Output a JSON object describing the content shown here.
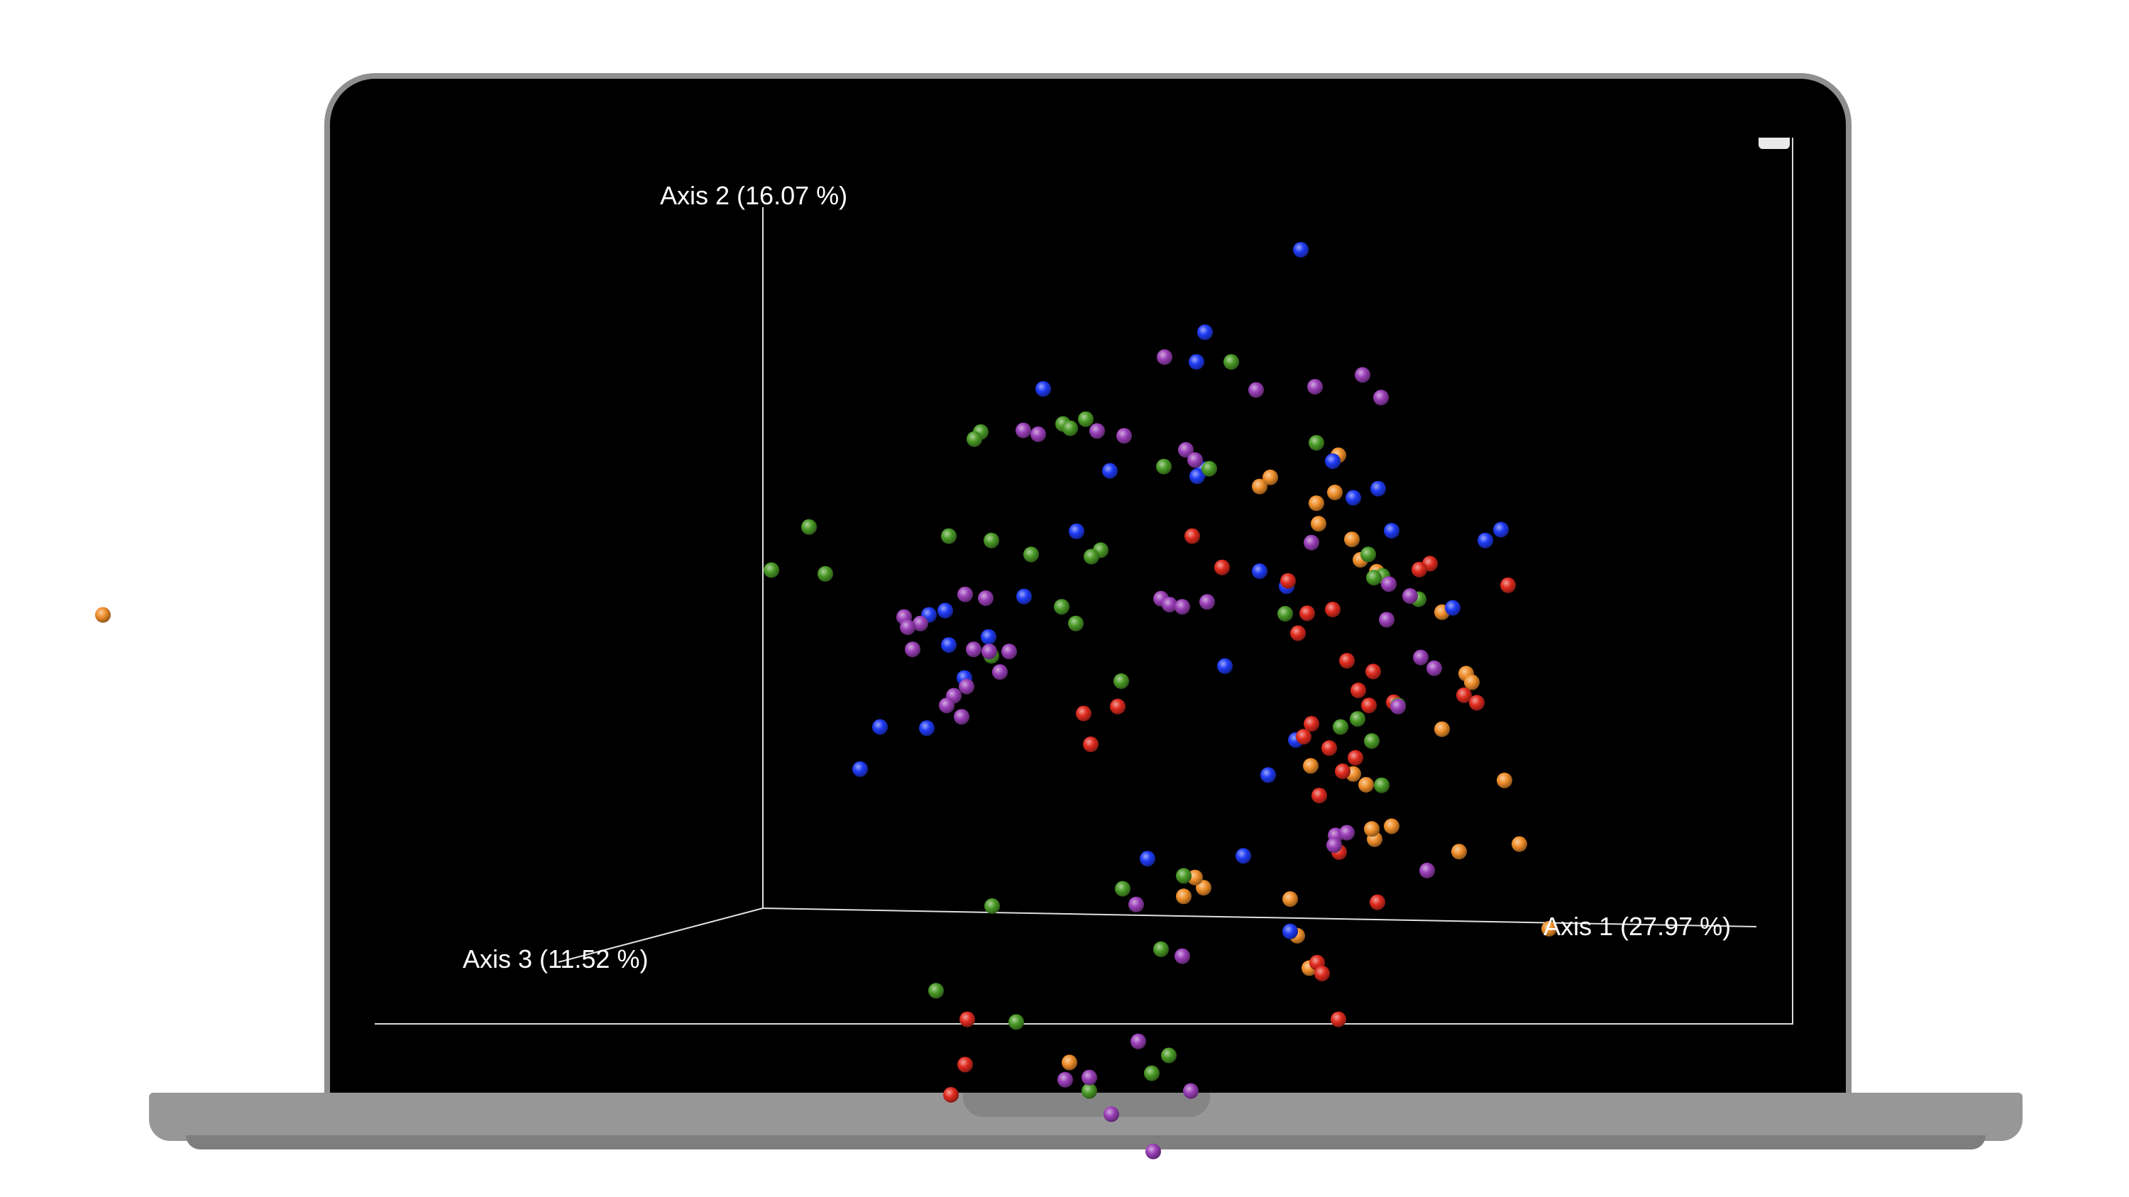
{
  "window": {
    "corner_button_icon": "minimize-icon"
  },
  "colors": {
    "background": "#000000",
    "axis_line": "#e0e0e0",
    "axis_text": "#ffffff",
    "groups": {
      "red": "#e02a1e",
      "blue": "#1f3bf5",
      "green": "#4a9a26",
      "purple": "#9a3fb8",
      "orange": "#f08f2a"
    }
  },
  "chart_data": {
    "type": "scatter",
    "projection": "3d-pcoa",
    "title": "",
    "axes": {
      "x": "Axis 1 (27.97 %)",
      "y": "Axis 2 (16.07 %)",
      "z": "Axis 3 (11.52 %)"
    },
    "grid": false,
    "legend": "none",
    "series": [
      {
        "color": "#f08f2a",
        "points": [
          [
            -0.93,
            0.544
          ],
          [
            0.7,
            0.782
          ],
          [
            0.715,
            0.799
          ],
          [
            0.78,
            0.751
          ],
          [
            0.806,
            0.771
          ],
          [
            0.811,
            0.84
          ],
          [
            0.783,
            0.713
          ],
          [
            0.83,
            0.684
          ],
          [
            0.842,
            0.646
          ],
          [
            0.865,
            0.624
          ],
          [
            0.957,
            0.549
          ],
          [
            0.991,
            0.435
          ],
          [
            0.999,
            0.419
          ],
          [
            0.957,
            0.332
          ],
          [
            1.045,
            0.237
          ],
          [
            0.772,
            0.264
          ],
          [
            0.85,
            0.229
          ],
          [
            0.832,
            0.249
          ],
          [
            0.862,
            0.128
          ],
          [
            0.886,
            0.152
          ],
          [
            0.858,
            0.147
          ],
          [
            0.981,
            0.105
          ],
          [
            1.066,
            0.119
          ],
          [
            1.108,
            -0.038
          ],
          [
            0.743,
            0.017
          ],
          [
            0.753,
            -0.051
          ],
          [
            0.621,
            0.038
          ],
          [
            0.609,
            0.057
          ],
          [
            0.593,
            0.022
          ],
          [
            0.77,
            -0.111
          ],
          [
            0.432,
            -0.286
          ]
        ]
      },
      {
        "color": "#1f3bf5",
        "points": [
          [
            0.758,
            1.221
          ],
          [
            0.623,
            1.068
          ],
          [
            0.611,
            1.013
          ],
          [
            0.395,
            0.963
          ],
          [
            0.803,
            0.829
          ],
          [
            0.867,
            0.778
          ],
          [
            0.489,
            0.811
          ],
          [
            0.621,
            0.814
          ],
          [
            0.612,
            0.801
          ],
          [
            0.832,
            0.761
          ],
          [
            0.886,
            0.7
          ],
          [
            1.04,
            0.702
          ],
          [
            1.018,
            0.682
          ],
          [
            0.442,
            0.699
          ],
          [
            0.7,
            0.625
          ],
          [
            0.738,
            0.597
          ],
          [
            0.257,
            0.552
          ],
          [
            0.368,
            0.578
          ],
          [
            0.234,
            0.544
          ],
          [
            0.262,
            0.488
          ],
          [
            0.318,
            0.503
          ],
          [
            0.651,
            0.449
          ],
          [
            0.284,
            0.427
          ],
          [
            0.231,
            0.334
          ],
          [
            0.165,
            0.336
          ],
          [
            0.137,
            0.258
          ],
          [
            0.751,
            0.312
          ],
          [
            0.712,
            0.247
          ],
          [
            0.542,
            0.092
          ],
          [
            0.677,
            0.097
          ],
          [
            0.743,
            -0.043
          ],
          [
            0.972,
            0.557
          ]
        ]
      },
      {
        "color": "#e02a1e",
        "points": [
          [
            0.605,
            0.69
          ],
          [
            0.647,
            0.632
          ],
          [
            0.74,
            0.607
          ],
          [
            0.767,
            0.547
          ],
          [
            0.803,
            0.554
          ],
          [
            0.754,
            0.51
          ],
          [
            0.823,
            0.459
          ],
          [
            0.86,
            0.439
          ],
          [
            0.839,
            0.404
          ],
          [
            0.889,
            0.382
          ],
          [
            0.854,
            0.376
          ],
          [
            0.773,
            0.342
          ],
          [
            0.762,
            0.318
          ],
          [
            0.798,
            0.297
          ],
          [
            0.835,
            0.279
          ],
          [
            0.817,
            0.254
          ],
          [
            0.784,
            0.209
          ],
          [
            0.812,
            0.104
          ],
          [
            0.94,
            0.639
          ],
          [
            0.925,
            0.628
          ],
          [
            1.05,
            0.599
          ],
          [
            0.988,
            0.395
          ],
          [
            1.006,
            0.381
          ],
          [
            0.5,
            0.374
          ],
          [
            0.452,
            0.361
          ],
          [
            0.462,
            0.304
          ],
          [
            0.781,
            -0.101
          ],
          [
            0.788,
            -0.121
          ],
          [
            0.866,
            0.011
          ],
          [
            0.288,
            -0.206
          ],
          [
            0.285,
            -0.29
          ],
          [
            0.811,
            -0.206
          ],
          [
            0.265,
            -0.346
          ]
        ]
      },
      {
        "color": "#4a9a26",
        "points": [
          [
            0.66,
            1.013
          ],
          [
            0.78,
            0.863
          ],
          [
            0.455,
            0.907
          ],
          [
            0.307,
            0.883
          ],
          [
            0.298,
            0.87
          ],
          [
            0.423,
            0.898
          ],
          [
            0.433,
            0.89
          ],
          [
            0.565,
            0.819
          ],
          [
            0.629,
            0.815
          ],
          [
            0.065,
            0.707
          ],
          [
            0.262,
            0.69
          ],
          [
            0.322,
            0.682
          ],
          [
            0.378,
            0.656
          ],
          [
            0.476,
            0.664
          ],
          [
            0.463,
            0.652
          ],
          [
            0.012,
            0.627
          ],
          [
            0.088,
            0.62
          ],
          [
            0.421,
            0.559
          ],
          [
            0.441,
            0.528
          ],
          [
            0.322,
            0.468
          ],
          [
            0.505,
            0.421
          ],
          [
            0.736,
            0.546
          ],
          [
            0.853,
            0.656
          ],
          [
            0.873,
            0.616
          ],
          [
            0.861,
            0.613
          ],
          [
            0.924,
            0.573
          ],
          [
            0.895,
            0.376
          ],
          [
            0.838,
            0.351
          ],
          [
            0.814,
            0.336
          ],
          [
            0.858,
            0.31
          ],
          [
            0.872,
            0.228
          ],
          [
            0.593,
            0.06
          ],
          [
            0.507,
            0.036
          ],
          [
            0.323,
            0.004
          ],
          [
            0.561,
            -0.076
          ],
          [
            0.244,
            -0.153
          ],
          [
            0.357,
            -0.211
          ],
          [
            0.572,
            -0.273
          ],
          [
            0.548,
            -0.306
          ],
          [
            0.46,
            -0.339
          ]
        ]
      },
      {
        "color": "#9a3fb8",
        "points": [
          [
            0.566,
            1.022
          ],
          [
            0.695,
            0.961
          ],
          [
            0.778,
            0.967
          ],
          [
            0.845,
            0.989
          ],
          [
            0.871,
            0.947
          ],
          [
            0.367,
            0.886
          ],
          [
            0.388,
            0.879
          ],
          [
            0.471,
            0.885
          ],
          [
            0.509,
            0.876
          ],
          [
            0.596,
            0.85
          ],
          [
            0.609,
            0.831
          ],
          [
            0.773,
            0.678
          ],
          [
            0.561,
            0.574
          ],
          [
            0.626,
            0.568
          ],
          [
            0.573,
            0.563
          ],
          [
            0.591,
            0.559
          ],
          [
            0.285,
            0.582
          ],
          [
            0.314,
            0.575
          ],
          [
            0.882,
            0.601
          ],
          [
            0.912,
            0.579
          ],
          [
            0.879,
            0.535
          ],
          [
            0.199,
            0.54
          ],
          [
            0.222,
            0.528
          ],
          [
            0.204,
            0.521
          ],
          [
            0.211,
            0.48
          ],
          [
            0.319,
            0.476
          ],
          [
            0.297,
            0.48
          ],
          [
            0.347,
            0.476
          ],
          [
            0.334,
            0.438
          ],
          [
            0.287,
            0.411
          ],
          [
            0.269,
            0.394
          ],
          [
            0.259,
            0.376
          ],
          [
            0.28,
            0.355
          ],
          [
            0.927,
            0.465
          ],
          [
            0.946,
            0.445
          ],
          [
            0.895,
            0.374
          ],
          [
            0.807,
            0.135
          ],
          [
            0.823,
            0.14
          ],
          [
            0.805,
            0.117
          ],
          [
            0.936,
            0.07
          ],
          [
            0.526,
            0.007
          ],
          [
            0.591,
            -0.089
          ],
          [
            0.529,
            -0.247
          ],
          [
            0.46,
            -0.314
          ],
          [
            0.426,
            -0.318
          ],
          [
            0.603,
            -0.339
          ],
          [
            0.491,
            -0.382
          ],
          [
            0.55,
            -0.451
          ]
        ]
      }
    ]
  }
}
